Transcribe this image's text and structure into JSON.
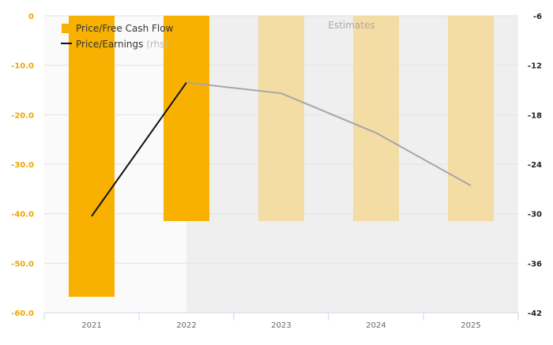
{
  "chart_data": {
    "type": "bar",
    "categories": [
      "2021",
      "2022",
      "2023",
      "2024",
      "2025"
    ],
    "estimate_label": "Estimates",
    "estimate_from_index": 1,
    "series": [
      {
        "name": "Price/Free Cash Flow",
        "type": "bar",
        "axis": "left",
        "values": [
          -56.8,
          -41.5,
          -41.5,
          -41.5,
          -41.5
        ],
        "color": "#f8b100",
        "estimate_color": "#f4dca5"
      },
      {
        "name": "Price/Earnings",
        "name_suffix": "(rhs)",
        "type": "line",
        "axis": "right",
        "values": [
          -30.3,
          -14.1,
          -15.4,
          -20.2,
          -26.6
        ],
        "color": "#111111",
        "estimate_color": "#a6a6a6"
      }
    ],
    "left_axis": {
      "min": -60,
      "max": 0,
      "ticks": [
        "0",
        "-10.0",
        "-20.0",
        "-30.0",
        "-40.0",
        "-50.0",
        "-60.0"
      ]
    },
    "right_axis": {
      "min": -42,
      "max": -6,
      "ticks": [
        "-6",
        "-12",
        "-18",
        "-24",
        "-30",
        "-36",
        "-42"
      ]
    },
    "legend_position": "top-left",
    "grid": true
  }
}
